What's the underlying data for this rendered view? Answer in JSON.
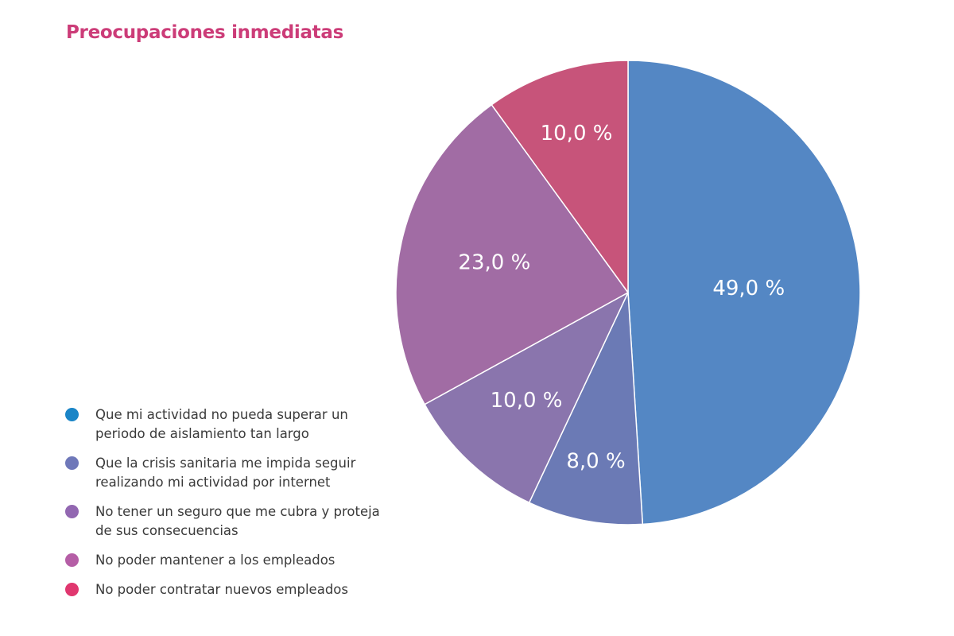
{
  "chart_data": {
    "type": "pie",
    "title": "Preocupaciones inmediatas",
    "slices": [
      {
        "label": "Que mi actividad no pueda superar un\nperiodo de aislamiento tan largo",
        "value": 49.0,
        "value_label": "49,0 %",
        "color": "#5487c4",
        "legend_color": "#1a85c7"
      },
      {
        "label": "Que la crisis sanitaria me impida seguir\nrealizando mi actividad por internet",
        "value": 8.0,
        "value_label": "8,0 %",
        "color": "#6b7ab5",
        "legend_color": "#6f78b9"
      },
      {
        "label": "No tener un seguro que me cubra y proteja\nde sus consecuencias",
        "value": 10.0,
        "value_label": "10,0 %",
        "color": "#8a75ad",
        "legend_color": "#9267b1"
      },
      {
        "label": "No poder mantener a los empleados",
        "value": 23.0,
        "value_label": "23,0 %",
        "color": "#a16ca4",
        "legend_color": "#b55ea6"
      },
      {
        "label": "No poder contratar nuevos empleados",
        "value": 10.0,
        "value_label": "10,0 %",
        "color": "#c7547a",
        "legend_color": "#e0376f"
      }
    ],
    "start_angle": "12 o'clock",
    "direction": "clockwise",
    "legend_position": "bottom-left"
  },
  "colors": {
    "title": "#cc3c78",
    "slice_border": "#ffffff",
    "label_text": "#ffffff",
    "legend_text": "#3a3a3a"
  }
}
